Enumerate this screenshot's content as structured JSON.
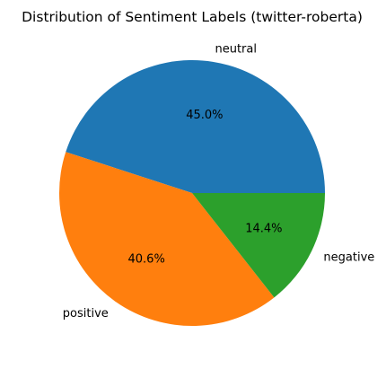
{
  "chart_data": {
    "type": "pie",
    "title": "Distribution of Sentiment Labels (twitter-roberta)",
    "slices": [
      {
        "label": "neutral",
        "value": 45.0,
        "pct_label": "45.0%",
        "color": "#1f77b4"
      },
      {
        "label": "positive",
        "value": 40.6,
        "pct_label": "40.6%",
        "color": "#ff7f0e"
      },
      {
        "label": "negative",
        "value": 14.4,
        "pct_label": "14.4%",
        "color": "#2ca02c"
      }
    ],
    "start_angle_deg": 0,
    "direction": "counterclockwise",
    "legend": "none"
  }
}
